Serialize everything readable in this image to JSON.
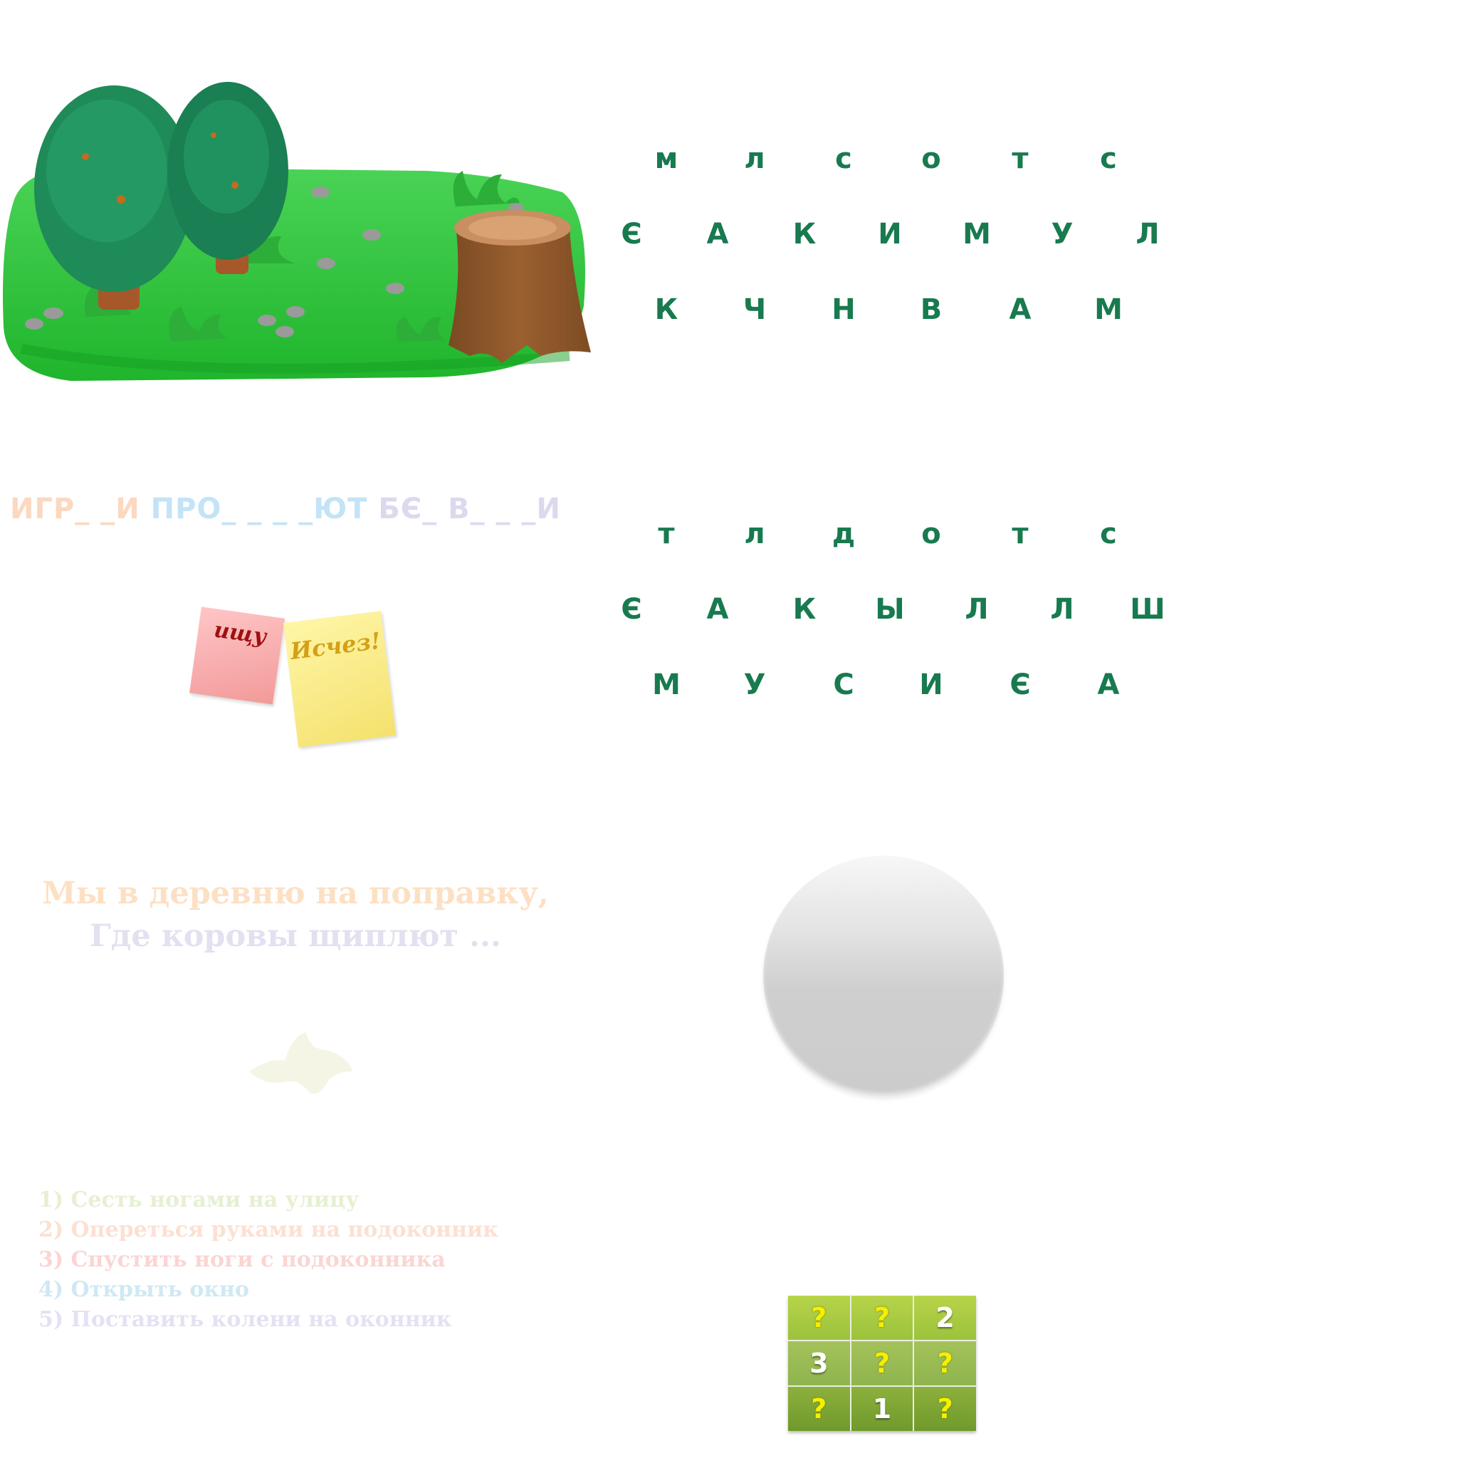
{
  "letter_grid_1": {
    "rows": [
      [
        "м",
        "л",
        "с",
        "о",
        "т",
        "с"
      ],
      [
        "Є",
        "А",
        "К",
        "И",
        "М",
        "У",
        "Л"
      ],
      [
        "К",
        "Ч",
        "Н",
        "В",
        "А",
        "М"
      ]
    ]
  },
  "letter_grid_2": {
    "rows": [
      [
        "т",
        "л",
        "д",
        "о",
        "т",
        "с"
      ],
      [
        "Є",
        "А",
        "К",
        "Ы",
        "Л",
        "Л",
        "Ш"
      ],
      [
        "М",
        "У",
        "С",
        "И",
        "Є",
        "А"
      ]
    ]
  },
  "puzzle_sentence": {
    "word_1": "ИГР_ _И",
    "word_2": "ПРО_ _ _ _ЮТ",
    "word_3": "БЄ_ В_ _ _И"
  },
  "notes": {
    "pink_text": "ищу",
    "yellow_text": "Исчез!"
  },
  "poem": {
    "line_1": "Мы в деревню на поправку,",
    "line_2": "Где коровы щиплют ..."
  },
  "steps": [
    {
      "num": "1)",
      "text": "Сесть ногами на улицу"
    },
    {
      "num": "2)",
      "text": "Опереться руками на подоконник"
    },
    {
      "num": "3)",
      "text": "Спустить ноги с подоконника"
    },
    {
      "num": "4)",
      "text": "Открыть окно"
    },
    {
      "num": "5)",
      "text": "Поставить колени на оконник"
    }
  ],
  "number_grid": {
    "cells": [
      "?",
      "?",
      "2",
      "3",
      "?",
      "?",
      "?",
      "1",
      "?"
    ]
  },
  "colors": {
    "letters": "#187a4f",
    "grass": "#3fcc4a",
    "stump": "#8b5a2b",
    "tree": "#1e8a58"
  }
}
